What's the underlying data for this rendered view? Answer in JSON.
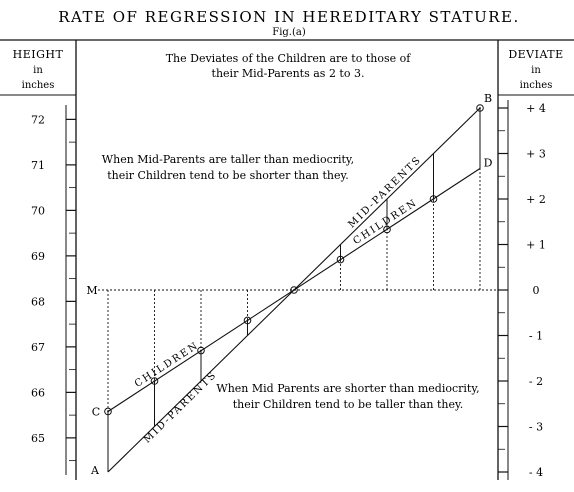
{
  "chart_data": {
    "type": "line",
    "title": "RATE OF REGRESSION IN HEREDITARY STATURE.",
    "subtitle": "Fig.(a)",
    "y_left_header": [
      "HEIGHT",
      "in",
      "inches"
    ],
    "y_right_header": [
      "DEVIATE",
      "in",
      "inches"
    ],
    "y_left_ticks": [
      "72",
      "71",
      "70",
      "69",
      "68",
      "67",
      "66",
      "65"
    ],
    "y_right_ticks": [
      "+ 4",
      "+ 3",
      "+ 2",
      "+ 1",
      "0",
      "- 1",
      "- 2",
      "- 3",
      "- 4"
    ],
    "deviate_ticks_values": [
      4,
      3,
      2,
      1,
      0,
      -1,
      -2,
      -3,
      -4
    ],
    "mediocrity_height": 68.25,
    "x": [
      -4,
      -3,
      -2,
      -1,
      0,
      1,
      2,
      3,
      4
    ],
    "ylim_deviate": [
      -4,
      4
    ],
    "series": [
      {
        "name": "MID-PARENTS",
        "values": [
          -4,
          -3,
          -2,
          -1,
          0,
          1,
          2,
          3,
          4
        ]
      },
      {
        "name": "CHILDREN",
        "values": [
          -2.67,
          -2,
          -1.33,
          -0.67,
          0,
          0.67,
          1.33,
          2,
          2.67
        ]
      }
    ],
    "point_labels": {
      "A": "A",
      "B": "B",
      "C": "C",
      "D": "D",
      "M": "M"
    },
    "annotations": {
      "ratio": [
        "The Deviates of the Children are to those of",
        "their Mid-Parents as 2 to 3."
      ],
      "taller": [
        "When Mid-Parents are taller than mediocrity,",
        "their Children tend to be shorter than they."
      ],
      "shorter": [
        "When Mid Parents are shorter than mediocrity,",
        "their Children tend to be taller than they."
      ]
    }
  }
}
